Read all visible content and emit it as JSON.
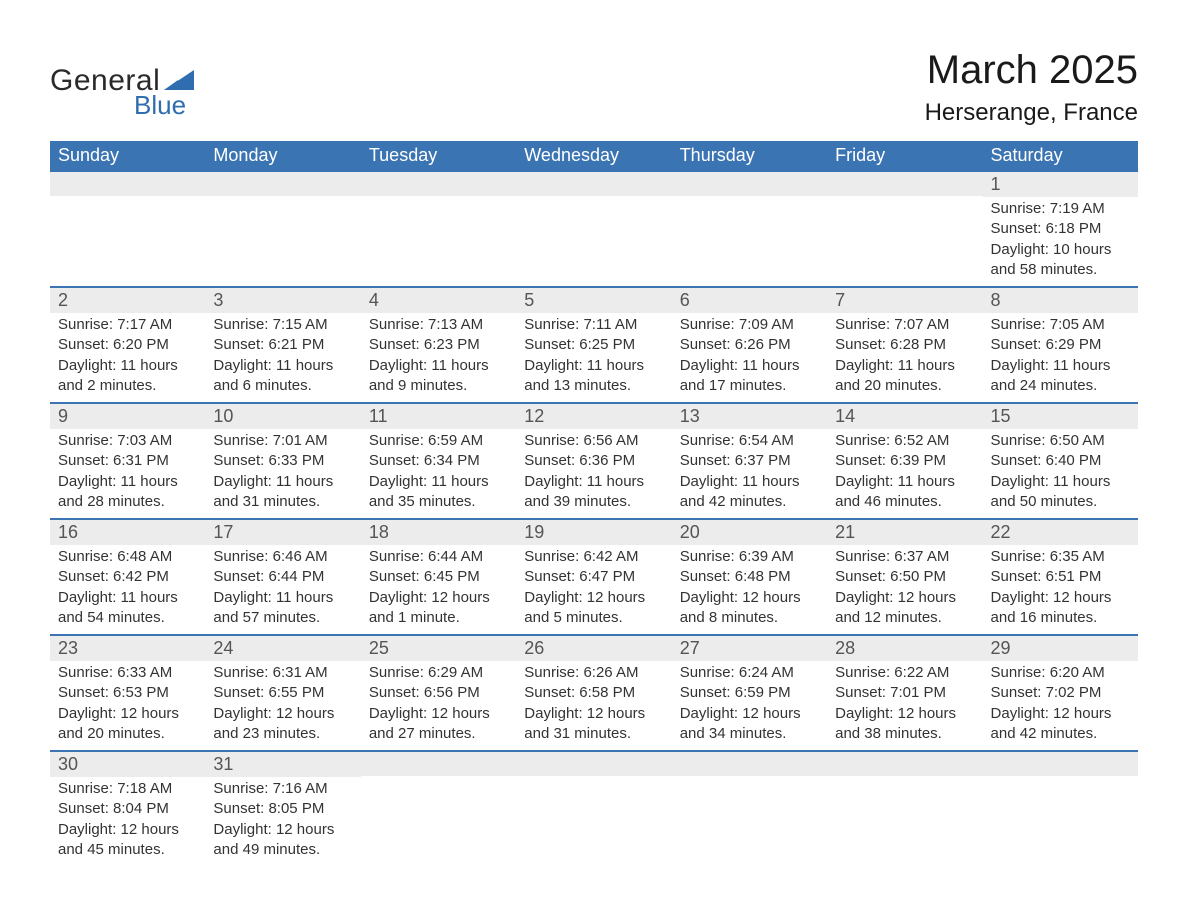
{
  "logo": {
    "text1": "General",
    "text2": "Blue",
    "tri_color": "#2f6db0"
  },
  "title": "March 2025",
  "location": "Herserange, France",
  "colors": {
    "header_bg": "#3b74b3",
    "header_fg": "#ffffff",
    "daynum_bg": "#ececec",
    "daynum_fg": "#555555",
    "body_fg": "#333333",
    "rule": "#3b74b3",
    "page_bg": "#ffffff"
  },
  "typography": {
    "title_fontsize": 40,
    "location_fontsize": 24,
    "header_fontsize": 18,
    "daynum_fontsize": 18,
    "body_fontsize": 15
  },
  "weekdays": [
    "Sunday",
    "Monday",
    "Tuesday",
    "Wednesday",
    "Thursday",
    "Friday",
    "Saturday"
  ],
  "weeks": [
    [
      {
        "num": "",
        "sunrise": "",
        "sunset": "",
        "daylight": ""
      },
      {
        "num": "",
        "sunrise": "",
        "sunset": "",
        "daylight": ""
      },
      {
        "num": "",
        "sunrise": "",
        "sunset": "",
        "daylight": ""
      },
      {
        "num": "",
        "sunrise": "",
        "sunset": "",
        "daylight": ""
      },
      {
        "num": "",
        "sunrise": "",
        "sunset": "",
        "daylight": ""
      },
      {
        "num": "",
        "sunrise": "",
        "sunset": "",
        "daylight": ""
      },
      {
        "num": "1",
        "sunrise": "Sunrise: 7:19 AM",
        "sunset": "Sunset: 6:18 PM",
        "daylight": "Daylight: 10 hours and 58 minutes."
      }
    ],
    [
      {
        "num": "2",
        "sunrise": "Sunrise: 7:17 AM",
        "sunset": "Sunset: 6:20 PM",
        "daylight": "Daylight: 11 hours and 2 minutes."
      },
      {
        "num": "3",
        "sunrise": "Sunrise: 7:15 AM",
        "sunset": "Sunset: 6:21 PM",
        "daylight": "Daylight: 11 hours and 6 minutes."
      },
      {
        "num": "4",
        "sunrise": "Sunrise: 7:13 AM",
        "sunset": "Sunset: 6:23 PM",
        "daylight": "Daylight: 11 hours and 9 minutes."
      },
      {
        "num": "5",
        "sunrise": "Sunrise: 7:11 AM",
        "sunset": "Sunset: 6:25 PM",
        "daylight": "Daylight: 11 hours and 13 minutes."
      },
      {
        "num": "6",
        "sunrise": "Sunrise: 7:09 AM",
        "sunset": "Sunset: 6:26 PM",
        "daylight": "Daylight: 11 hours and 17 minutes."
      },
      {
        "num": "7",
        "sunrise": "Sunrise: 7:07 AM",
        "sunset": "Sunset: 6:28 PM",
        "daylight": "Daylight: 11 hours and 20 minutes."
      },
      {
        "num": "8",
        "sunrise": "Sunrise: 7:05 AM",
        "sunset": "Sunset: 6:29 PM",
        "daylight": "Daylight: 11 hours and 24 minutes."
      }
    ],
    [
      {
        "num": "9",
        "sunrise": "Sunrise: 7:03 AM",
        "sunset": "Sunset: 6:31 PM",
        "daylight": "Daylight: 11 hours and 28 minutes."
      },
      {
        "num": "10",
        "sunrise": "Sunrise: 7:01 AM",
        "sunset": "Sunset: 6:33 PM",
        "daylight": "Daylight: 11 hours and 31 minutes."
      },
      {
        "num": "11",
        "sunrise": "Sunrise: 6:59 AM",
        "sunset": "Sunset: 6:34 PM",
        "daylight": "Daylight: 11 hours and 35 minutes."
      },
      {
        "num": "12",
        "sunrise": "Sunrise: 6:56 AM",
        "sunset": "Sunset: 6:36 PM",
        "daylight": "Daylight: 11 hours and 39 minutes."
      },
      {
        "num": "13",
        "sunrise": "Sunrise: 6:54 AM",
        "sunset": "Sunset: 6:37 PM",
        "daylight": "Daylight: 11 hours and 42 minutes."
      },
      {
        "num": "14",
        "sunrise": "Sunrise: 6:52 AM",
        "sunset": "Sunset: 6:39 PM",
        "daylight": "Daylight: 11 hours and 46 minutes."
      },
      {
        "num": "15",
        "sunrise": "Sunrise: 6:50 AM",
        "sunset": "Sunset: 6:40 PM",
        "daylight": "Daylight: 11 hours and 50 minutes."
      }
    ],
    [
      {
        "num": "16",
        "sunrise": "Sunrise: 6:48 AM",
        "sunset": "Sunset: 6:42 PM",
        "daylight": "Daylight: 11 hours and 54 minutes."
      },
      {
        "num": "17",
        "sunrise": "Sunrise: 6:46 AM",
        "sunset": "Sunset: 6:44 PM",
        "daylight": "Daylight: 11 hours and 57 minutes."
      },
      {
        "num": "18",
        "sunrise": "Sunrise: 6:44 AM",
        "sunset": "Sunset: 6:45 PM",
        "daylight": "Daylight: 12 hours and 1 minute."
      },
      {
        "num": "19",
        "sunrise": "Sunrise: 6:42 AM",
        "sunset": "Sunset: 6:47 PM",
        "daylight": "Daylight: 12 hours and 5 minutes."
      },
      {
        "num": "20",
        "sunrise": "Sunrise: 6:39 AM",
        "sunset": "Sunset: 6:48 PM",
        "daylight": "Daylight: 12 hours and 8 minutes."
      },
      {
        "num": "21",
        "sunrise": "Sunrise: 6:37 AM",
        "sunset": "Sunset: 6:50 PM",
        "daylight": "Daylight: 12 hours and 12 minutes."
      },
      {
        "num": "22",
        "sunrise": "Sunrise: 6:35 AM",
        "sunset": "Sunset: 6:51 PM",
        "daylight": "Daylight: 12 hours and 16 minutes."
      }
    ],
    [
      {
        "num": "23",
        "sunrise": "Sunrise: 6:33 AM",
        "sunset": "Sunset: 6:53 PM",
        "daylight": "Daylight: 12 hours and 20 minutes."
      },
      {
        "num": "24",
        "sunrise": "Sunrise: 6:31 AM",
        "sunset": "Sunset: 6:55 PM",
        "daylight": "Daylight: 12 hours and 23 minutes."
      },
      {
        "num": "25",
        "sunrise": "Sunrise: 6:29 AM",
        "sunset": "Sunset: 6:56 PM",
        "daylight": "Daylight: 12 hours and 27 minutes."
      },
      {
        "num": "26",
        "sunrise": "Sunrise: 6:26 AM",
        "sunset": "Sunset: 6:58 PM",
        "daylight": "Daylight: 12 hours and 31 minutes."
      },
      {
        "num": "27",
        "sunrise": "Sunrise: 6:24 AM",
        "sunset": "Sunset: 6:59 PM",
        "daylight": "Daylight: 12 hours and 34 minutes."
      },
      {
        "num": "28",
        "sunrise": "Sunrise: 6:22 AM",
        "sunset": "Sunset: 7:01 PM",
        "daylight": "Daylight: 12 hours and 38 minutes."
      },
      {
        "num": "29",
        "sunrise": "Sunrise: 6:20 AM",
        "sunset": "Sunset: 7:02 PM",
        "daylight": "Daylight: 12 hours and 42 minutes."
      }
    ],
    [
      {
        "num": "30",
        "sunrise": "Sunrise: 7:18 AM",
        "sunset": "Sunset: 8:04 PM",
        "daylight": "Daylight: 12 hours and 45 minutes."
      },
      {
        "num": "31",
        "sunrise": "Sunrise: 7:16 AM",
        "sunset": "Sunset: 8:05 PM",
        "daylight": "Daylight: 12 hours and 49 minutes."
      },
      {
        "num": "",
        "sunrise": "",
        "sunset": "",
        "daylight": ""
      },
      {
        "num": "",
        "sunrise": "",
        "sunset": "",
        "daylight": ""
      },
      {
        "num": "",
        "sunrise": "",
        "sunset": "",
        "daylight": ""
      },
      {
        "num": "",
        "sunrise": "",
        "sunset": "",
        "daylight": ""
      },
      {
        "num": "",
        "sunrise": "",
        "sunset": "",
        "daylight": ""
      }
    ]
  ]
}
